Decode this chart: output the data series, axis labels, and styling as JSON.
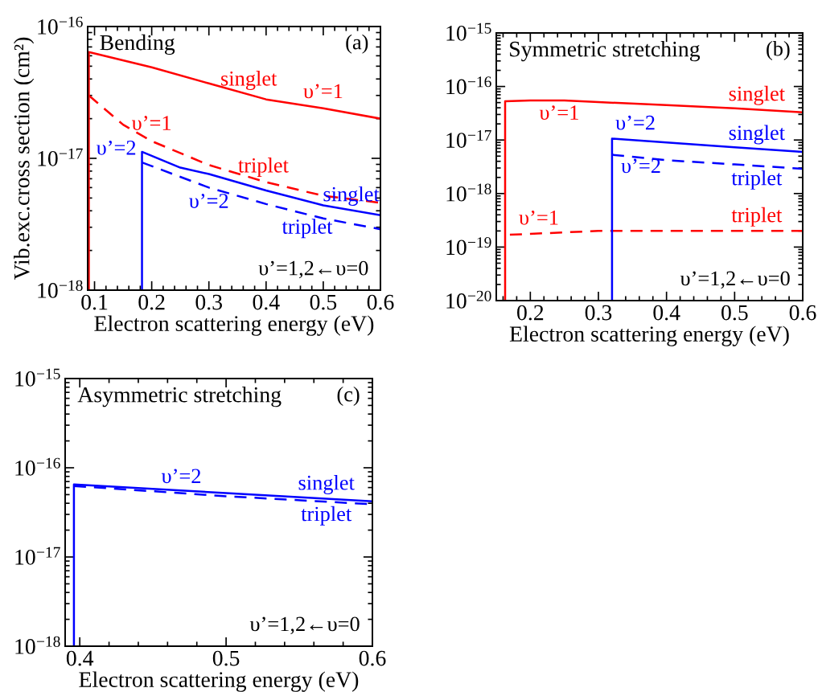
{
  "chart_data": [
    {
      "type": "line",
      "title": "Bending",
      "xlabel": "Electron scattering energy (eV)",
      "ylabel": "Vib.exc.cross section (cm²)",
      "log": "y",
      "xlim": [
        0.088,
        0.6
      ],
      "ylim": [
        1e-18,
        1e-16
      ],
      "xticks": [
        0.1,
        0.2,
        0.3,
        0.4,
        0.5,
        0.6
      ],
      "yticks": [
        {
          "value": 1e-18,
          "label": "10$^{−18}$"
        },
        {
          "value": 1e-17,
          "label": "10$^{−17}$"
        },
        {
          "value": 1e-16,
          "label": "10$^{−16}$"
        }
      ],
      "grid": false,
      "legend": false,
      "series": [
        {
          "name": "singlet",
          "color": "#ff0000",
          "line_style": "solid",
          "x": [
            0.09,
            0.09,
            0.2,
            0.3,
            0.4,
            0.5,
            0.6
          ],
          "values": [
            1e-18,
            6.4e-17,
            4.9e-17,
            3.7e-17,
            2.8e-17,
            2.4e-17,
            2e-17
          ]
        },
        {
          "name": "triplet",
          "color": "#ff0000",
          "line_style": "dashed",
          "x": [
            0.09,
            0.15,
            0.2,
            0.3,
            0.4,
            0.5,
            0.6
          ],
          "values": [
            3e-17,
            1.8e-17,
            1.35e-17,
            8.9e-18,
            6.6e-18,
            5.2e-18,
            4.6e-18
          ]
        },
        {
          "name": "singlet",
          "color": "#0000ff",
          "line_style": "solid",
          "x": [
            0.183,
            0.183,
            0.25,
            0.3,
            0.4,
            0.5,
            0.6
          ],
          "values": [
            1e-18,
            1.12e-17,
            8.5e-18,
            7.6e-18,
            5.7e-18,
            4.4e-18,
            3.7e-18
          ]
        },
        {
          "name": "triplet",
          "color": "#0000ff",
          "line_style": "dashed",
          "x": [
            0.183,
            0.3,
            0.4,
            0.5,
            0.6
          ],
          "values": [
            9.3e-18,
            6e-18,
            4.5e-18,
            3.5e-18,
            2.9e-18
          ]
        }
      ],
      "annotations": [
        "(a)",
        "υ’=1,2←υ=0",
        {
          "text": "υ’=1",
          "x": 0.5,
          "y": 2.4e-17
        },
        {
          "text": "υ’=1",
          "x": 0.2,
          "y": 1.35e-17
        },
        {
          "text": "υ’=2",
          "x": 0.183,
          "y": 1.12e-17
        },
        {
          "text": "υ’=2",
          "x": 0.3,
          "y": 6e-18
        }
      ]
    },
    {
      "type": "line",
      "title": "Symmetric stretching",
      "xlabel": "Electron scattering energy (eV)",
      "log": "y",
      "xlim": [
        0.15,
        0.6
      ],
      "ylim": [
        1e-20,
        1e-15
      ],
      "xticks": [
        0.2,
        0.3,
        0.4,
        0.5,
        0.6
      ],
      "yticks": [
        {
          "value": 1e-20,
          "label": "10$^{−20}$"
        },
        {
          "value": 1e-19,
          "label": "10$^{−19}$"
        },
        {
          "value": 1e-18,
          "label": "10$^{−18}$"
        },
        {
          "value": 1e-17,
          "label": "10$^{−17}$"
        },
        {
          "value": 1e-16,
          "label": "10$^{−16}$"
        },
        {
          "value": 1e-15,
          "label": "10$^{−15}$"
        }
      ],
      "grid": false,
      "legend": false,
      "series": [
        {
          "name": "singlet",
          "color": "#ff0000",
          "line_style": "solid",
          "x": [
            0.163,
            0.163,
            0.2,
            0.25,
            0.3,
            0.4,
            0.5,
            0.6
          ],
          "values": [
            1e-20,
            5.3e-17,
            5.5e-17,
            5.5e-17,
            5.1e-17,
            4.5e-17,
            3.9e-17,
            3.3e-17
          ]
        },
        {
          "name": "triplet",
          "color": "#ff0000",
          "line_style": "dashed",
          "x": [
            0.17,
            0.3,
            0.6
          ],
          "values": [
            1.7e-19,
            2e-19,
            2e-19
          ]
        },
        {
          "name": "singlet",
          "color": "#0000ff",
          "line_style": "solid",
          "x": [
            0.32,
            0.32,
            0.4,
            0.5,
            0.6
          ],
          "values": [
            1e-20,
            1.06e-17,
            9e-18,
            7.3e-18,
            6e-18
          ]
        },
        {
          "name": "triplet",
          "color": "#0000ff",
          "line_style": "dashed",
          "x": [
            0.32,
            0.4,
            0.5,
            0.6
          ],
          "values": [
            5.3e-18,
            4.2e-18,
            3.5e-18,
            2.9e-18
          ]
        }
      ],
      "annotations": [
        "(b)",
        "υ’=1,2←υ=0",
        {
          "text": "υ’=1",
          "x": 0.2,
          "y": 5.5e-17
        },
        {
          "text": "υ’=1",
          "x": 0.17,
          "y": 1.7e-19
        },
        {
          "text": "υ’=2",
          "x": 0.32,
          "y": 1.06e-17
        },
        {
          "text": "υ’=2",
          "x": 0.32,
          "y": 5.3e-18
        }
      ]
    },
    {
      "type": "line",
      "title": "Asymmetric stretching",
      "xlabel": "Electron scattering energy (eV)",
      "log": "y",
      "xlim": [
        0.39,
        0.6
      ],
      "ylim": [
        1e-18,
        1e-15
      ],
      "xticks": [
        0.4,
        0.5,
        0.6
      ],
      "yticks": [
        {
          "value": 1e-18,
          "label": "10$^{−18}$"
        },
        {
          "value": 1e-17,
          "label": "10$^{−17}$"
        },
        {
          "value": 1e-16,
          "label": "10$^{−16}$"
        },
        {
          "value": 1e-15,
          "label": "10$^{−15}$"
        }
      ],
      "grid": false,
      "legend": false,
      "series": [
        {
          "name": "singlet",
          "color": "#0000ff",
          "line_style": "solid",
          "x": [
            0.396,
            0.396,
            0.5,
            0.6
          ],
          "values": [
            1e-18,
            6.5e-17,
            5.2e-17,
            4.2e-17
          ]
        },
        {
          "name": "triplet",
          "color": "#0000ff",
          "line_style": "dashed",
          "x": [
            0.396,
            0.5,
            0.6
          ],
          "values": [
            6.25e-17,
            4.8e-17,
            3.9e-17
          ]
        }
      ],
      "annotations": [
        "(c)",
        "υ’=1,2←υ=0",
        {
          "text": "υ’=2",
          "x": 0.5,
          "y": 5.2e-17
        }
      ]
    }
  ]
}
